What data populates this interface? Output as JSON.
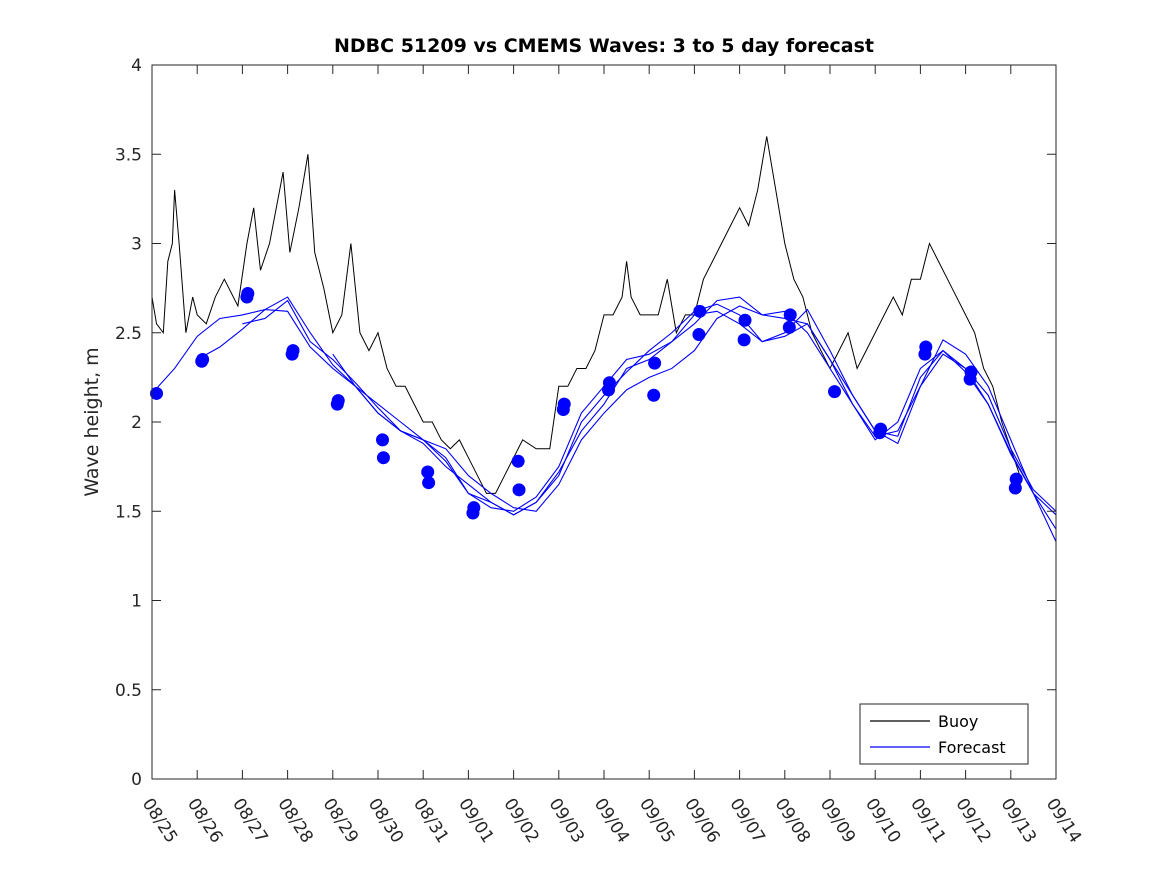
{
  "chart_data": {
    "type": "line",
    "title": "NDBC 51209 vs CMEMS Waves: 3 to 5 day forecast",
    "xlabel": "",
    "ylabel": "Wave height, m",
    "xlim": [
      0,
      20
    ],
    "ylim": [
      0,
      4
    ],
    "x_tick_labels": [
      "08/25",
      "08/26",
      "08/27",
      "08/28",
      "08/29",
      "08/30",
      "08/31",
      "09/01",
      "09/02",
      "09/03",
      "09/04",
      "09/05",
      "09/06",
      "09/07",
      "09/08",
      "09/09",
      "09/10",
      "09/11",
      "09/12",
      "09/13",
      "09/14"
    ],
    "y_ticks": [
      0,
      0.5,
      1,
      1.5,
      2,
      2.5,
      3,
      3.5,
      4
    ],
    "y_tick_labels": [
      "0",
      "0.5",
      "1",
      "1.5",
      "2",
      "2.5",
      "3",
      "3.5",
      "4"
    ],
    "legend": {
      "position": "bottom-right",
      "entries": [
        {
          "name": "Buoy",
          "color": "#000000"
        },
        {
          "name": "Forecast",
          "color": "#0000ff"
        }
      ]
    },
    "series": [
      {
        "name": "Buoy",
        "color": "#000000",
        "points": [
          [
            0.0,
            2.7
          ],
          [
            0.1,
            2.55
          ],
          [
            0.25,
            2.5
          ],
          [
            0.35,
            2.9
          ],
          [
            0.45,
            3.0
          ],
          [
            0.5,
            3.3
          ],
          [
            0.6,
            3.0
          ],
          [
            0.75,
            2.5
          ],
          [
            0.9,
            2.7
          ],
          [
            1.0,
            2.6
          ],
          [
            1.2,
            2.55
          ],
          [
            1.4,
            2.7
          ],
          [
            1.6,
            2.8
          ],
          [
            1.9,
            2.65
          ],
          [
            2.1,
            3.0
          ],
          [
            2.25,
            3.2
          ],
          [
            2.4,
            2.85
          ],
          [
            2.6,
            3.0
          ],
          [
            2.75,
            3.2
          ],
          [
            2.9,
            3.4
          ],
          [
            3.05,
            2.95
          ],
          [
            3.25,
            3.2
          ],
          [
            3.45,
            3.5
          ],
          [
            3.6,
            2.95
          ],
          [
            3.8,
            2.75
          ],
          [
            4.0,
            2.5
          ],
          [
            4.2,
            2.6
          ],
          [
            4.4,
            3.0
          ],
          [
            4.6,
            2.5
          ],
          [
            4.8,
            2.4
          ],
          [
            5.0,
            2.5
          ],
          [
            5.2,
            2.3
          ],
          [
            5.4,
            2.2
          ],
          [
            5.6,
            2.2
          ],
          [
            5.8,
            2.1
          ],
          [
            6.0,
            2.0
          ],
          [
            6.2,
            2.0
          ],
          [
            6.4,
            1.9
          ],
          [
            6.6,
            1.85
          ],
          [
            6.8,
            1.9
          ],
          [
            7.0,
            1.8
          ],
          [
            7.2,
            1.7
          ],
          [
            7.4,
            1.6
          ],
          [
            7.6,
            1.6
          ],
          [
            7.8,
            1.7
          ],
          [
            8.0,
            1.8
          ],
          [
            8.2,
            1.9
          ],
          [
            8.5,
            1.85
          ],
          [
            8.8,
            1.85
          ],
          [
            9.0,
            2.2
          ],
          [
            9.2,
            2.2
          ],
          [
            9.4,
            2.3
          ],
          [
            9.6,
            2.3
          ],
          [
            9.8,
            2.4
          ],
          [
            10.0,
            2.6
          ],
          [
            10.2,
            2.6
          ],
          [
            10.4,
            2.7
          ],
          [
            10.5,
            2.9
          ],
          [
            10.6,
            2.7
          ],
          [
            10.8,
            2.6
          ],
          [
            11.0,
            2.6
          ],
          [
            11.2,
            2.6
          ],
          [
            11.4,
            2.8
          ],
          [
            11.6,
            2.5
          ],
          [
            11.8,
            2.6
          ],
          [
            12.0,
            2.6
          ],
          [
            12.2,
            2.8
          ],
          [
            12.4,
            2.9
          ],
          [
            12.6,
            3.0
          ],
          [
            12.8,
            3.1
          ],
          [
            13.0,
            3.2
          ],
          [
            13.2,
            3.1
          ],
          [
            13.4,
            3.3
          ],
          [
            13.6,
            3.6
          ],
          [
            13.8,
            3.3
          ],
          [
            14.0,
            3.0
          ],
          [
            14.2,
            2.8
          ],
          [
            14.4,
            2.7
          ],
          [
            14.6,
            2.5
          ],
          [
            14.8,
            2.4
          ],
          [
            15.0,
            2.3
          ],
          [
            15.2,
            2.4
          ],
          [
            15.4,
            2.5
          ],
          [
            15.6,
            2.3
          ],
          [
            15.8,
            2.4
          ],
          [
            16.0,
            2.5
          ],
          [
            16.2,
            2.6
          ],
          [
            16.4,
            2.7
          ],
          [
            16.6,
            2.6
          ],
          [
            16.8,
            2.8
          ],
          [
            17.0,
            2.8
          ],
          [
            17.2,
            3.0
          ],
          [
            17.4,
            2.9
          ],
          [
            17.6,
            2.8
          ],
          [
            17.8,
            2.7
          ],
          [
            18.0,
            2.6
          ],
          [
            18.2,
            2.5
          ],
          [
            18.4,
            2.3
          ],
          [
            18.6,
            2.2
          ],
          [
            18.8,
            2.0
          ],
          [
            19.0,
            1.85
          ],
          [
            19.2,
            1.7
          ]
        ]
      },
      {
        "name": "Forecast",
        "color": "#0000ff",
        "runs": [
          [
            [
              0,
              2.16
            ],
            [
              0.5,
              2.3
            ],
            [
              1.0,
              2.48
            ],
            [
              1.5,
              2.58
            ],
            [
              2.0,
              2.6
            ],
            [
              2.5,
              2.63
            ],
            [
              3.0,
              2.62
            ],
            [
              3.5,
              2.42
            ],
            [
              4.0,
              2.3
            ],
            [
              4.5,
              2.2
            ],
            [
              5.0,
              2.1
            ],
            [
              5.5,
              2.0
            ],
            [
              6.0,
              1.9
            ],
            [
              6.5,
              1.85
            ],
            [
              7.0,
              1.7
            ],
            [
              7.5,
              1.6
            ],
            [
              8.0,
              1.52
            ],
            [
              8.5,
              1.5
            ],
            [
              9.0,
              1.65
            ],
            [
              9.5,
              1.9
            ],
            [
              10.0,
              2.05
            ],
            [
              10.5,
              2.18
            ],
            [
              11.0,
              2.25
            ],
            [
              11.5,
              2.3
            ],
            [
              12.0,
              2.4
            ],
            [
              12.5,
              2.58
            ],
            [
              13.0,
              2.65
            ],
            [
              13.5,
              2.6
            ],
            [
              14.0,
              2.58
            ],
            [
              14.5,
              2.55
            ],
            [
              15.0,
              2.35
            ],
            [
              15.5,
              2.15
            ],
            [
              16.0,
              1.95
            ],
            [
              16.5,
              1.88
            ],
            [
              17.0,
              2.2
            ],
            [
              17.5,
              2.46
            ],
            [
              18.0,
              2.38
            ],
            [
              18.5,
              2.2
            ],
            [
              19.0,
              1.9
            ],
            [
              19.5,
              1.6
            ],
            [
              20.0,
              1.33
            ]
          ],
          [
            [
              1.0,
              2.35
            ],
            [
              1.5,
              2.42
            ],
            [
              2.0,
              2.52
            ],
            [
              2.5,
              2.63
            ],
            [
              3.0,
              2.7
            ],
            [
              3.5,
              2.5
            ],
            [
              4.0,
              2.32
            ],
            [
              4.5,
              2.2
            ],
            [
              5.0,
              2.05
            ],
            [
              5.5,
              1.95
            ],
            [
              6.0,
              1.88
            ],
            [
              6.5,
              1.75
            ],
            [
              7.0,
              1.65
            ],
            [
              7.5,
              1.55
            ],
            [
              8.0,
              1.48
            ],
            [
              8.5,
              1.55
            ],
            [
              9.0,
              1.7
            ],
            [
              9.5,
              2.0
            ],
            [
              10.0,
              2.15
            ],
            [
              10.5,
              2.28
            ],
            [
              11.0,
              2.4
            ],
            [
              11.5,
              2.5
            ],
            [
              12.0,
              2.62
            ],
            [
              12.5,
              2.66
            ],
            [
              13.0,
              2.6
            ],
            [
              13.5,
              2.45
            ],
            [
              14.0,
              2.5
            ],
            [
              14.5,
              2.63
            ],
            [
              15.0,
              2.4
            ],
            [
              15.5,
              2.15
            ],
            [
              16.0,
              1.95
            ],
            [
              16.5,
              1.92
            ],
            [
              17.0,
              2.25
            ],
            [
              17.5,
              2.4
            ],
            [
              18.0,
              2.28
            ],
            [
              18.5,
              2.1
            ],
            [
              19.0,
              1.83
            ],
            [
              19.5,
              1.6
            ],
            [
              20.0,
              1.4
            ]
          ],
          [
            [
              2.0,
              2.55
            ],
            [
              2.5,
              2.58
            ],
            [
              3.0,
              2.68
            ],
            [
              3.5,
              2.45
            ],
            [
              4.0,
              2.35
            ],
            [
              4.5,
              2.22
            ],
            [
              5.0,
              2.08
            ],
            [
              5.5,
              1.95
            ],
            [
              6.0,
              1.9
            ],
            [
              6.5,
              1.8
            ],
            [
              7.0,
              1.6
            ],
            [
              7.5,
              1.52
            ],
            [
              8.0,
              1.5
            ],
            [
              8.5,
              1.58
            ],
            [
              9.0,
              1.75
            ],
            [
              9.5,
              2.05
            ],
            [
              10.0,
              2.2
            ],
            [
              10.5,
              2.35
            ],
            [
              11.0,
              2.38
            ],
            [
              11.5,
              2.45
            ],
            [
              12.0,
              2.55
            ],
            [
              12.5,
              2.68
            ],
            [
              13.0,
              2.7
            ],
            [
              13.5,
              2.6
            ],
            [
              14.0,
              2.62
            ],
            [
              14.5,
              2.5
            ],
            [
              15.0,
              2.3
            ],
            [
              15.5,
              2.1
            ],
            [
              16.0,
              1.92
            ],
            [
              16.5,
              1.95
            ],
            [
              17.0,
              2.2
            ],
            [
              17.5,
              2.38
            ],
            [
              18.0,
              2.3
            ],
            [
              18.5,
              2.15
            ],
            [
              19.0,
              1.85
            ],
            [
              19.5,
              1.62
            ],
            [
              20.0,
              1.5
            ]
          ],
          [
            [
              4.0,
              2.38
            ],
            [
              4.5,
              2.2
            ],
            [
              5.0,
              2.05
            ],
            [
              5.5,
              1.95
            ],
            [
              6.0,
              1.9
            ],
            [
              6.5,
              1.78
            ],
            [
              7.0,
              1.6
            ],
            [
              7.5,
              1.55
            ],
            [
              8.0,
              1.48
            ],
            [
              8.5,
              1.55
            ],
            [
              9.0,
              1.72
            ],
            [
              9.5,
              1.95
            ],
            [
              10.0,
              2.1
            ],
            [
              10.5,
              2.3
            ],
            [
              11.0,
              2.35
            ],
            [
              11.5,
              2.45
            ],
            [
              12.0,
              2.6
            ],
            [
              12.5,
              2.62
            ],
            [
              13.0,
              2.55
            ],
            [
              13.5,
              2.45
            ],
            [
              14.0,
              2.48
            ],
            [
              14.5,
              2.55
            ],
            [
              15.0,
              2.35
            ],
            [
              15.5,
              2.1
            ],
            [
              16.0,
              1.9
            ],
            [
              16.5,
              2.0
            ],
            [
              17.0,
              2.3
            ],
            [
              17.5,
              2.4
            ],
            [
              18.0,
              2.3
            ],
            [
              18.5,
              2.1
            ],
            [
              19.0,
              1.82
            ],
            [
              19.5,
              1.6
            ],
            [
              20.0,
              1.48
            ]
          ]
        ]
      },
      {
        "name": "Forecast markers",
        "color": "#0000ff",
        "points": [
          [
            0.1,
            2.16
          ],
          [
            1.1,
            2.34
          ],
          [
            1.12,
            2.35
          ],
          [
            2.1,
            2.7
          ],
          [
            2.12,
            2.72
          ],
          [
            3.1,
            2.38
          ],
          [
            3.12,
            2.4
          ],
          [
            4.1,
            2.1
          ],
          [
            4.12,
            2.12
          ],
          [
            5.1,
            1.9
          ],
          [
            5.12,
            1.8
          ],
          [
            6.1,
            1.72
          ],
          [
            6.12,
            1.66
          ],
          [
            7.1,
            1.49
          ],
          [
            7.12,
            1.52
          ],
          [
            8.1,
            1.78
          ],
          [
            8.12,
            1.62
          ],
          [
            9.1,
            2.07
          ],
          [
            9.12,
            2.1
          ],
          [
            10.1,
            2.18
          ],
          [
            10.12,
            2.22
          ],
          [
            11.1,
            2.15
          ],
          [
            11.12,
            2.33
          ],
          [
            12.1,
            2.49
          ],
          [
            12.12,
            2.62
          ],
          [
            13.1,
            2.46
          ],
          [
            13.12,
            2.57
          ],
          [
            14.1,
            2.53
          ],
          [
            14.12,
            2.6
          ],
          [
            15.1,
            2.17
          ],
          [
            16.1,
            1.94
          ],
          [
            16.12,
            1.96
          ],
          [
            17.1,
            2.38
          ],
          [
            17.12,
            2.42
          ],
          [
            18.1,
            2.24
          ],
          [
            18.12,
            2.28
          ],
          [
            19.1,
            1.63
          ],
          [
            19.12,
            1.68
          ]
        ]
      }
    ]
  }
}
